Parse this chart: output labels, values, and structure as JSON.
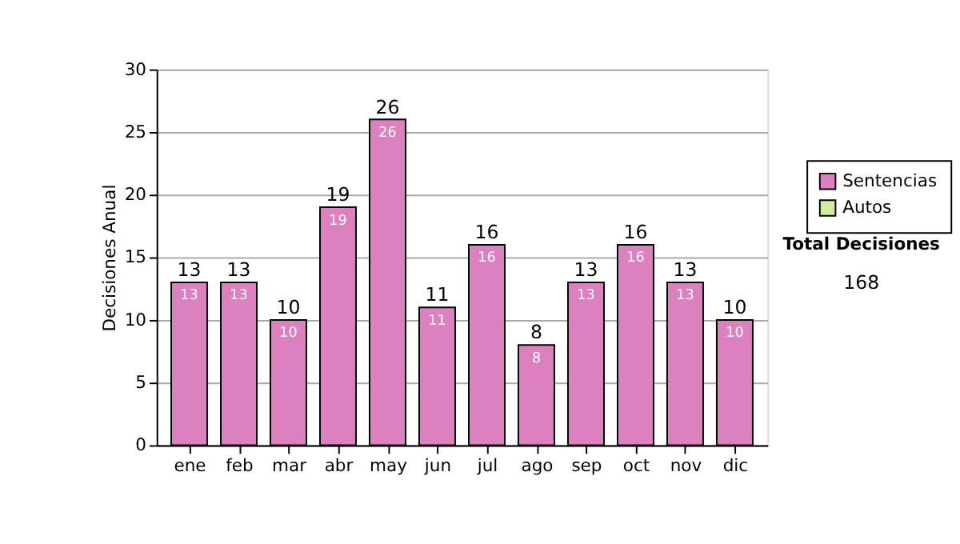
{
  "chart_data": {
    "type": "bar",
    "ylabel": "Decisiones Anual",
    "categories": [
      "ene",
      "feb",
      "mar",
      "abr",
      "may",
      "jun",
      "jul",
      "ago",
      "sep",
      "oct",
      "nov",
      "dic"
    ],
    "series": [
      {
        "name": "Sentencias",
        "color": "#dd80c0",
        "values": [
          13,
          13,
          10,
          19,
          26,
          11,
          16,
          8,
          13,
          16,
          13,
          10
        ]
      },
      {
        "name": "Autos",
        "color": "#d4eca0",
        "values": [
          null,
          null,
          null,
          null,
          null,
          null,
          null,
          null,
          null,
          null,
          null,
          null
        ]
      }
    ],
    "data_labels": true,
    "totals": [
      "13",
      "13",
      "10",
      "19",
      "26",
      "11",
      "16",
      "8",
      "13",
      "16",
      "13",
      "10"
    ],
    "ylim": [
      0,
      30
    ],
    "yticks": [
      0,
      5,
      10,
      15,
      20,
      25,
      30
    ],
    "grid": "y",
    "legend": "right",
    "annotations": [
      "Total Decisiones",
      "168"
    ]
  }
}
